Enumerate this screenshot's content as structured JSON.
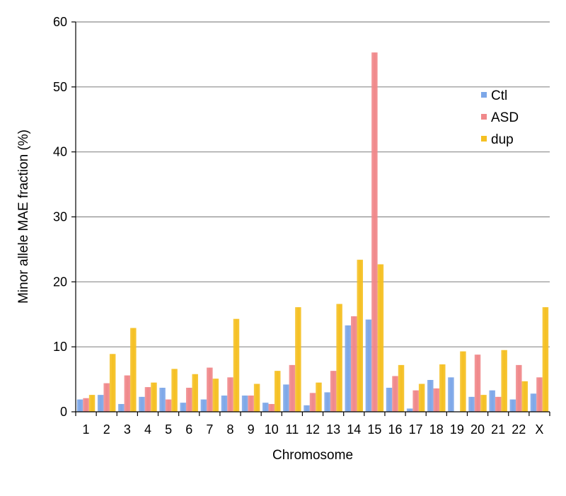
{
  "chart_data": {
    "type": "bar",
    "xlabel": "Chromosome",
    "ylabel": "Minor allele MAE fraction (%)",
    "ylim": [
      0,
      60
    ],
    "yticks": [
      0,
      10,
      20,
      30,
      40,
      50,
      60
    ],
    "grid": true,
    "legend_position": "right",
    "categories": [
      "1",
      "2",
      "3",
      "4",
      "5",
      "6",
      "7",
      "8",
      "9",
      "10",
      "11",
      "12",
      "13",
      "14",
      "15",
      "16",
      "17",
      "18",
      "19",
      "20",
      "21",
      "22",
      "X"
    ],
    "series": [
      {
        "name": "Ctl",
        "color": "#7da7e8",
        "values": [
          1.9,
          2.6,
          1.2,
          2.3,
          3.7,
          1.4,
          1.9,
          2.5,
          2.5,
          1.4,
          4.2,
          1.0,
          3.0,
          13.3,
          14.2,
          3.7,
          0.5,
          4.9,
          5.3,
          2.3,
          3.3,
          1.9,
          2.8
        ]
      },
      {
        "name": "ASD",
        "color": "#f0888a",
        "values": [
          2.1,
          4.4,
          5.6,
          3.8,
          1.9,
          3.7,
          6.8,
          5.3,
          2.5,
          1.2,
          7.2,
          2.9,
          6.3,
          14.7,
          55.3,
          5.5,
          3.3,
          3.6,
          0,
          8.8,
          2.3,
          7.2,
          5.3
        ]
      },
      {
        "name": "dup",
        "color": "#f5c022",
        "values": [
          2.6,
          8.9,
          12.9,
          4.5,
          6.6,
          5.8,
          5.1,
          14.3,
          4.3,
          6.3,
          16.1,
          4.5,
          16.6,
          23.4,
          22.7,
          7.2,
          4.3,
          7.3,
          9.3,
          2.6,
          9.5,
          4.7,
          16.1
        ]
      }
    ]
  }
}
